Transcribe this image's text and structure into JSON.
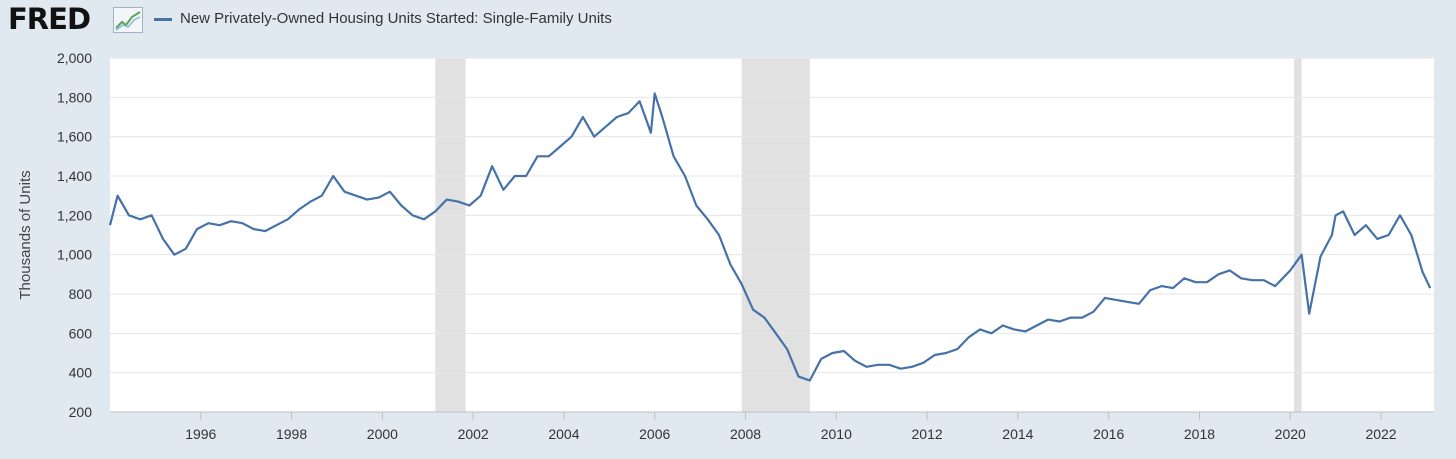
{
  "header": {
    "logo_text": "FRED",
    "logo_icon": "trend-chart-icon",
    "legend_label": "New Privately-Owned Housing Units Started: Single-Family Units"
  },
  "chart_data": {
    "type": "line",
    "title": "",
    "ylabel": "Thousands of Units",
    "xlabel": "",
    "xlim": [
      "1994-01",
      "2023-03"
    ],
    "ylim": [
      200,
      2000
    ],
    "y_ticks": [
      200,
      400,
      600,
      800,
      1000,
      1200,
      1400,
      1600,
      1800,
      2000
    ],
    "y_tick_labels": [
      "200",
      "400",
      "600",
      "800",
      "1,000",
      "1,200",
      "1,400",
      "1,600",
      "1,800",
      "2,000"
    ],
    "x_tick_labels": [
      "1996",
      "1998",
      "2000",
      "2002",
      "2004",
      "2006",
      "2008",
      "2010",
      "2012",
      "2014",
      "2016",
      "2018",
      "2020",
      "2022"
    ],
    "grid": "horizontal",
    "recessions": [
      [
        "2001-03",
        "2001-11"
      ],
      [
        "2007-12",
        "2009-06"
      ],
      [
        "2020-02",
        "2020-04"
      ]
    ],
    "series": [
      {
        "name": "New Privately-Owned Housing Units Started: Single-Family Units",
        "color": "#4572a7",
        "x": [
          "1994-01",
          "1994-03",
          "1994-06",
          "1994-09",
          "1994-12",
          "1995-03",
          "1995-06",
          "1995-09",
          "1995-12",
          "1996-03",
          "1996-06",
          "1996-09",
          "1996-12",
          "1997-03",
          "1997-06",
          "1997-09",
          "1997-12",
          "1998-03",
          "1998-06",
          "1998-09",
          "1998-12",
          "1999-03",
          "1999-06",
          "1999-09",
          "1999-12",
          "2000-03",
          "2000-06",
          "2000-09",
          "2000-12",
          "2001-03",
          "2001-06",
          "2001-09",
          "2001-12",
          "2002-03",
          "2002-06",
          "2002-09",
          "2002-12",
          "2003-03",
          "2003-06",
          "2003-09",
          "2003-12",
          "2004-03",
          "2004-06",
          "2004-09",
          "2004-12",
          "2005-03",
          "2005-06",
          "2005-09",
          "2005-12",
          "2006-01",
          "2006-03",
          "2006-06",
          "2006-09",
          "2006-12",
          "2007-03",
          "2007-06",
          "2007-09",
          "2007-12",
          "2008-03",
          "2008-06",
          "2008-09",
          "2008-12",
          "2009-03",
          "2009-06",
          "2009-09",
          "2009-12",
          "2010-03",
          "2010-06",
          "2010-09",
          "2010-12",
          "2011-03",
          "2011-06",
          "2011-09",
          "2011-12",
          "2012-03",
          "2012-06",
          "2012-09",
          "2012-12",
          "2013-03",
          "2013-06",
          "2013-09",
          "2013-12",
          "2014-03",
          "2014-06",
          "2014-09",
          "2014-12",
          "2015-03",
          "2015-06",
          "2015-09",
          "2015-12",
          "2016-03",
          "2016-06",
          "2016-09",
          "2016-12",
          "2017-03",
          "2017-06",
          "2017-09",
          "2017-12",
          "2018-03",
          "2018-06",
          "2018-09",
          "2018-12",
          "2019-03",
          "2019-06",
          "2019-09",
          "2019-12",
          "2020-01",
          "2020-04",
          "2020-06",
          "2020-09",
          "2020-12",
          "2021-01",
          "2021-03",
          "2021-06",
          "2021-09",
          "2021-12",
          "2022-03",
          "2022-06",
          "2022-09",
          "2022-12",
          "2023-02"
        ],
        "values": [
          1150,
          1300,
          1200,
          1180,
          1200,
          1080,
          1000,
          1030,
          1130,
          1160,
          1150,
          1170,
          1160,
          1130,
          1120,
          1150,
          1180,
          1230,
          1270,
          1300,
          1400,
          1320,
          1300,
          1280,
          1290,
          1320,
          1250,
          1200,
          1180,
          1220,
          1280,
          1270,
          1250,
          1300,
          1450,
          1330,
          1400,
          1400,
          1500,
          1500,
          1550,
          1600,
          1700,
          1600,
          1650,
          1700,
          1720,
          1780,
          1620,
          1820,
          1700,
          1500,
          1400,
          1250,
          1180,
          1100,
          950,
          850,
          720,
          680,
          600,
          520,
          380,
          360,
          470,
          500,
          510,
          460,
          430,
          440,
          440,
          420,
          430,
          450,
          490,
          500,
          520,
          580,
          620,
          600,
          640,
          620,
          610,
          640,
          670,
          660,
          680,
          680,
          710,
          780,
          770,
          760,
          750,
          820,
          840,
          830,
          880,
          860,
          860,
          900,
          920,
          880,
          870,
          870,
          840,
          900,
          920,
          1000,
          700,
          990,
          1100,
          1200,
          1220,
          1100,
          1150,
          1080,
          1100,
          1200,
          1100,
          910,
          830
        ]
      }
    ]
  }
}
